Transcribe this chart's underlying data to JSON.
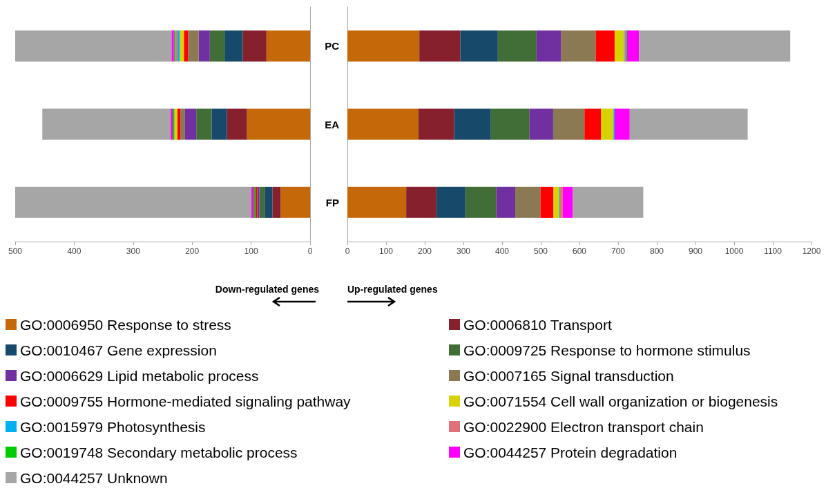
{
  "chart_data": [
    {
      "type": "bar",
      "orientation": "horizontal",
      "stacked": true,
      "categories": [
        null,
        null,
        null
      ],
      "xlim": [
        500,
        0
      ],
      "xticks": [
        500,
        400,
        300,
        200,
        100,
        0
      ],
      "annotations": [
        "Down-regulated genes"
      ],
      "series": [
        {
          "color": "#c5680a",
          "values": [
            74,
            107,
            50
          ]
        },
        {
          "color": "#86202d",
          "values": [
            40,
            34,
            14
          ]
        },
        {
          "color": "#17496a",
          "values": [
            31,
            26,
            13
          ]
        },
        {
          "color": "#416e37",
          "values": [
            25,
            26,
            9
          ]
        },
        {
          "color": "#7030a0",
          "values": [
            19,
            19,
            3
          ]
        },
        {
          "color": "#8a7952",
          "values": [
            18,
            8,
            1
          ]
        },
        {
          "color": "#ff0000",
          "values": [
            7,
            5,
            3
          ]
        },
        {
          "color": "#d8d300",
          "values": [
            7,
            5,
            0
          ]
        },
        {
          "color": "#00b0f0",
          "values": [
            4,
            0,
            0
          ]
        },
        {
          "color": "#e0707a",
          "values": [
            4,
            0,
            0
          ]
        },
        {
          "color": "#00cc00",
          "values": [
            2,
            3,
            3
          ]
        },
        {
          "color": "#ff00ff",
          "values": [
            4,
            4,
            4
          ]
        },
        {
          "color": "#a6a6a6",
          "values": [
            265,
            217,
            400
          ]
        }
      ]
    },
    {
      "type": "bar",
      "orientation": "horizontal",
      "stacked": true,
      "categories": [
        "PC",
        "EA",
        "FP"
      ],
      "xlim": [
        0,
        1200
      ],
      "xticks": [
        0,
        100,
        200,
        300,
        400,
        500,
        600,
        700,
        800,
        900,
        1000,
        1100,
        1200
      ],
      "legend": "bottom",
      "annotations": [
        "Up-regulated genes"
      ],
      "series": [
        {
          "name": "GO:0006950 Response to stress",
          "color": "#c5680a",
          "values": [
            186,
            184,
            152
          ]
        },
        {
          "name": "GO:0006810 Transport",
          "color": "#86202d",
          "values": [
            106,
            92,
            78
          ]
        },
        {
          "name": "GO:0010467 Gene expression",
          "color": "#17496a",
          "values": [
            97,
            95,
            75
          ]
        },
        {
          "name": "GO:0009725 Response to hormone stimulus",
          "color": "#416e37",
          "values": [
            100,
            100,
            80
          ]
        },
        {
          "name": "GO:0006629 Lipid metabolic process",
          "color": "#7030a0",
          "values": [
            64,
            61,
            49
          ]
        },
        {
          "name": "GO:0007165 Signal transduction",
          "color": "#8a7952",
          "values": [
            89,
            81,
            65
          ]
        },
        {
          "name": "GO:0009755 Hormone-mediated signaling pathway",
          "color": "#ff0000",
          "values": [
            49,
            43,
            34
          ]
        },
        {
          "name": "GO:0071554 Cell wall organization or biogenesis",
          "color": "#d8d300",
          "values": [
            24,
            32,
            15
          ]
        },
        {
          "name": "GO:0015979 Photosynthesis",
          "color": "#00b0f0",
          "values": [
            2,
            3,
            2
          ]
        },
        {
          "name": "GO:0022900 Electron transport chain",
          "color": "#e0707a",
          "values": [
            3,
            0,
            7
          ]
        },
        {
          "name": "GO:0019748 Secondary metabolic process",
          "color": "#00cc00",
          "values": [
            3,
            0,
            0
          ]
        },
        {
          "name": "GO:0044257 Protein degradation",
          "color": "#ff00ff",
          "values": [
            31,
            39,
            26
          ]
        },
        {
          "name": "GO:0044257 Unknown",
          "color": "#a6a6a6",
          "values": [
            391,
            305,
            182
          ]
        }
      ]
    }
  ]
}
